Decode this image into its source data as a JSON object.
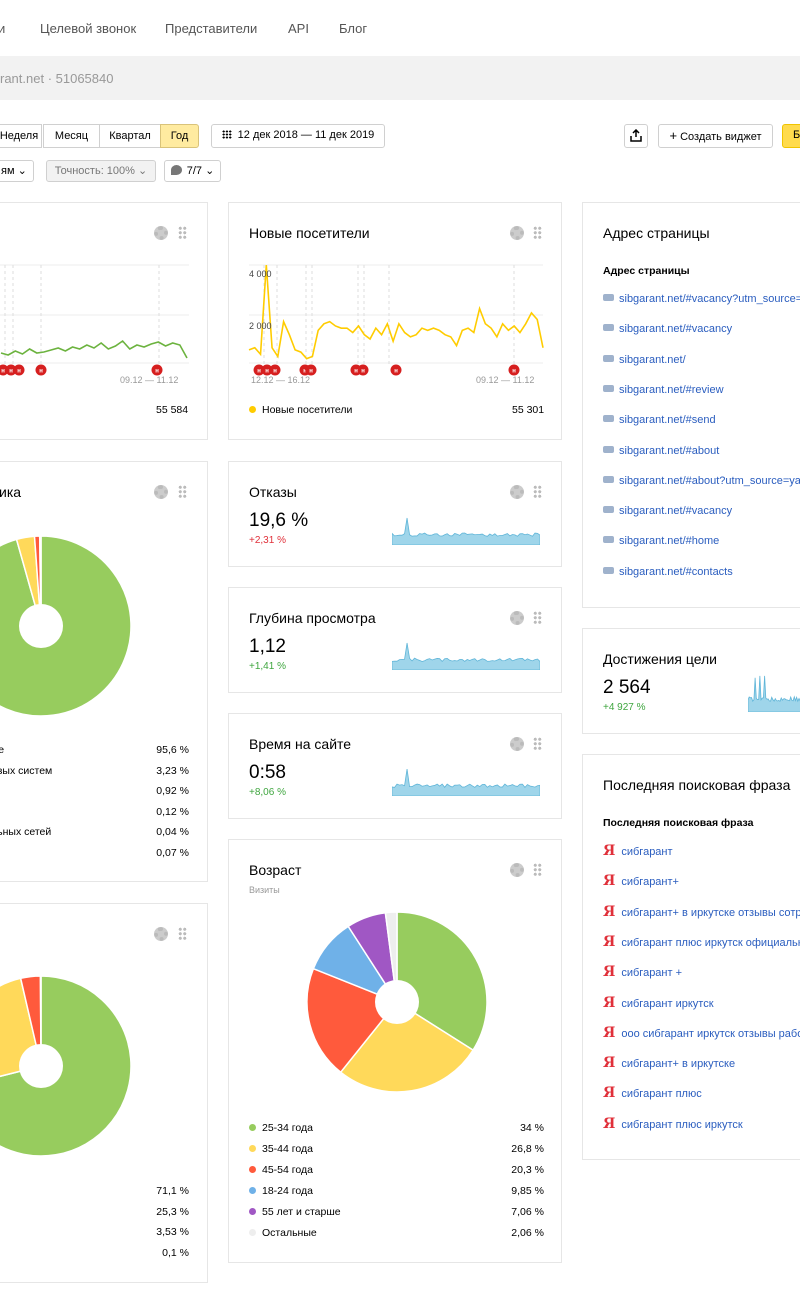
{
  "nav": {
    "items": [
      "и",
      "Целевой звонок",
      "Представители",
      "API",
      "Блог"
    ]
  },
  "site": {
    "label": "rant.net · 51065840"
  },
  "toolbar": {
    "periods": [
      "Неделя",
      "Месяц",
      "Квартал",
      "Год"
    ],
    "active_period": "Год",
    "date_range": "12 дек 2018 — 11 дек 2019",
    "create_widget": "Создать виджет",
    "create_widget_plus": "+",
    "right_partial": "Б",
    "group_partial": "ям",
    "accuracy": "Точность: 100%",
    "counter": "7/7"
  },
  "cards": {
    "visits": {
      "period_label": "09.12 — 11.12",
      "total": "55 584"
    },
    "new_visitors": {
      "title": "Новые посетители",
      "y_ticks": [
        "4 000",
        "2 000"
      ],
      "period_left": "12.12 — 16.12",
      "period_right": "09.12 — 11.12",
      "legend": "Новые посетители",
      "total": "55 301",
      "color": "#ffcc00"
    },
    "traffic": {
      "title_partial": "ика",
      "rows": [
        {
          "label": "ме",
          "value": "95,6 %"
        },
        {
          "label": "овых систем",
          "value": "3,23 %"
        },
        {
          "label": "",
          "value": "0,92 %"
        },
        {
          "label": "",
          "value": "0,12 %"
        },
        {
          "label": "льных сетей",
          "value": "0,04 %"
        },
        {
          "label": "",
          "value": "0,07 %"
        }
      ]
    },
    "devices": {
      "rows": [
        "71,1 %",
        "25,3 %",
        "3,53 %",
        "0,1 %"
      ]
    },
    "bounce": {
      "title": "Отказы",
      "value": "19,6 %",
      "delta": "+2,31 %"
    },
    "depth": {
      "title": "Глубина просмотра",
      "value": "1,12",
      "delta": "+1,41 %"
    },
    "time": {
      "title": "Время на сайте",
      "value": "0:58",
      "delta": "+8,06 %"
    },
    "age": {
      "title": "Возраст",
      "subtitle": "Визиты",
      "rows": [
        {
          "label": "25-34 года",
          "value": "34 %",
          "color": "#97cc5e"
        },
        {
          "label": "35-44 года",
          "value": "26,8 %",
          "color": "#ffd95a"
        },
        {
          "label": "45-54 года",
          "value": "20,3 %",
          "color": "#ff5a3c"
        },
        {
          "label": "18-24 года",
          "value": "9,85 %",
          "color": "#6fb1e8"
        },
        {
          "label": "55 лет и старше",
          "value": "7,06 %",
          "color": "#a057c4"
        },
        {
          "label": "Остальные",
          "value": "2,06 %",
          "color": "#eeeeee"
        }
      ]
    },
    "pages": {
      "title": "Адрес страницы",
      "header": "Адрес страницы",
      "links": [
        "sibgarant.net/#vacancy?utm_source=",
        "sibgarant.net/#vacancy",
        "sibgarant.net/",
        "sibgarant.net/#review",
        "sibgarant.net/#send",
        "sibgarant.net/#about",
        "sibgarant.net/#about?utm_source=ya",
        "sibgarant.net/#vacancy",
        "sibgarant.net/#home",
        "sibgarant.net/#contacts"
      ]
    },
    "goals": {
      "title": "Достижения цели",
      "value": "2 564",
      "delta": "+4 927 %"
    },
    "search": {
      "title": "Последняя поисковая фраза",
      "header": "Последняя поисковая фраза",
      "ya_glyph": "Я",
      "phrases": [
        "сибгарант",
        "сибгарант+",
        "сибгарант+ в иркутске отзывы сотру...",
        "сибгарант плюс иркутск официальн...",
        "сибгарант +",
        "сибгарант иркутск",
        "ооо сибгарант иркутск отзывы рабо...",
        "сибгарант+ в иркутске",
        "сибгарант плюс",
        "сибгарант плюс иркутск"
      ]
    }
  },
  "chart_data": [
    {
      "type": "pie",
      "categories": [
        "25-34 года",
        "35-44 года",
        "45-54 года",
        "18-24 года",
        "55 лет и старше",
        "Остальные"
      ],
      "values": [
        34,
        26.8,
        20.3,
        9.85,
        7.06,
        2.06
      ]
    },
    {
      "type": "pie",
      "values": [
        95.6,
        3.23,
        0.92,
        0.12,
        0.04,
        0.07
      ]
    },
    {
      "type": "pie",
      "values": [
        71.1,
        25.3,
        3.53,
        0.1
      ]
    },
    {
      "type": "line",
      "title": "Новые посетители",
      "ylim": [
        0,
        4500
      ],
      "values": [
        600,
        700,
        400,
        4500,
        700,
        300,
        1900,
        1300,
        600,
        500,
        200,
        300,
        1500,
        1800,
        1900,
        1700,
        1600,
        1600,
        1400,
        1700,
        1300,
        1100,
        1600,
        1300,
        1800,
        1000,
        1800,
        1400,
        1200,
        1300,
        1600,
        1500,
        1600,
        1500,
        1300,
        1200,
        800,
        1500,
        1600,
        1400,
        2500,
        1800,
        1600,
        1200,
        1800,
        1500,
        1700,
        1400,
        1800,
        2300,
        2000,
        700
      ]
    }
  ]
}
